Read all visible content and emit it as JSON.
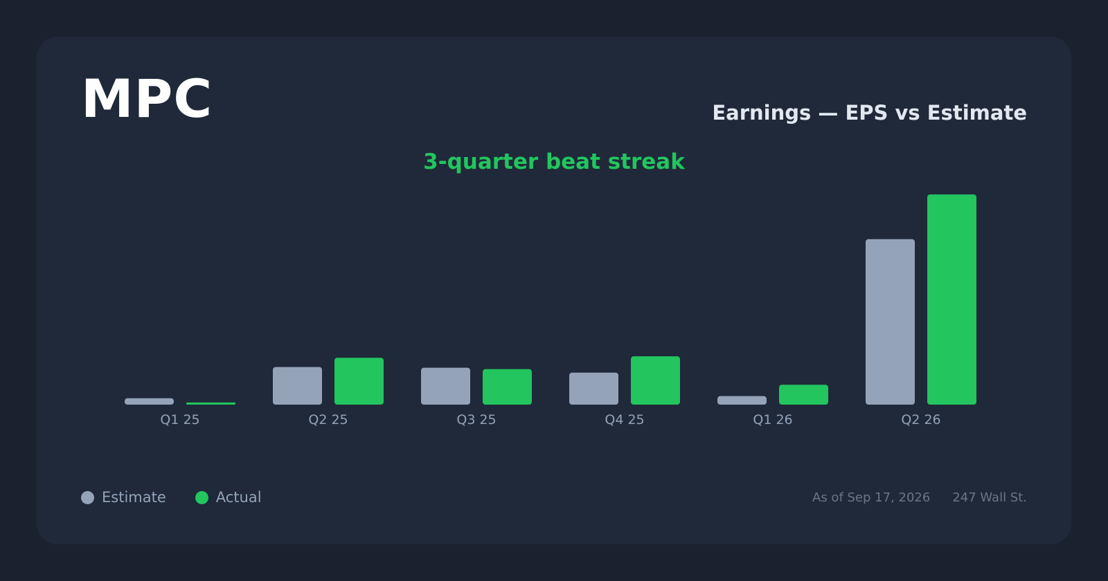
{
  "ticker": "MPC",
  "chart_title": "Earnings — EPS vs Estimate",
  "headline": "3-quarter beat streak",
  "footer": {
    "as_of": "As of Sep 17, 2026",
    "source": "247 Wall St."
  },
  "colors": {
    "estimate": "#94a3b8",
    "actual": "#22c55e",
    "background": "#1f293a"
  },
  "chart_data": {
    "type": "bar",
    "title": "Earnings — EPS vs Estimate",
    "subtitle": "3-quarter beat streak",
    "xlabel": "",
    "ylabel": "",
    "categories": [
      "Q1 25",
      "Q2 25",
      "Q3 25",
      "Q4 25",
      "Q1 26",
      "Q2 26"
    ],
    "series": [
      {
        "name": "Estimate",
        "values": [
          0.09,
          0.53,
          0.52,
          0.45,
          0.12,
          2.33
        ]
      },
      {
        "name": "Actual",
        "values": [
          0.03,
          0.66,
          0.5,
          0.68,
          0.28,
          2.96
        ]
      }
    ],
    "ylim": [
      0,
      3.0
    ],
    "grid": false,
    "legend": "bottom-left"
  }
}
